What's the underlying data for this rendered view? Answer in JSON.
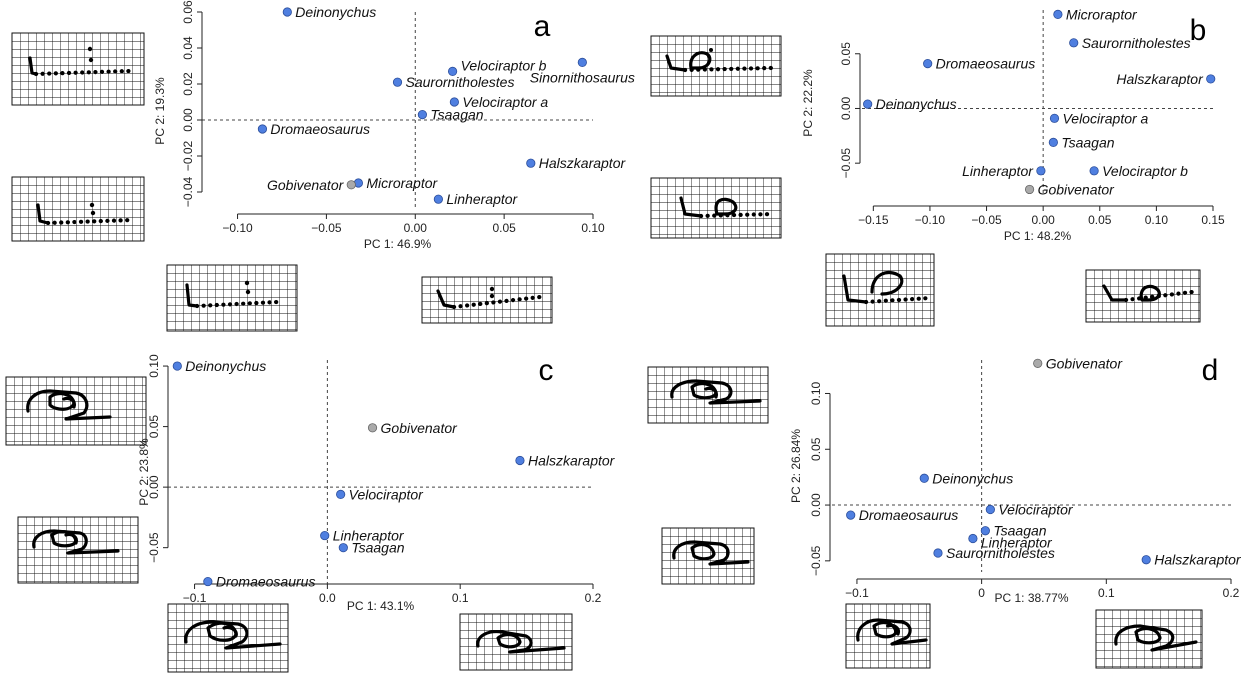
{
  "colors": {
    "point": "#4f7fe0",
    "point_gray": "#aaaaaa",
    "point_stroke": "#2c4e9a",
    "gray_stroke": "#666666"
  },
  "chart_data": [
    {
      "id": "a",
      "type": "scatter",
      "panel_label": "a",
      "xlabel": "PC 1: 46.9%",
      "ylabel": "PC 2: 19.3%",
      "xlim": [
        -0.12,
        0.1
      ],
      "ylim": [
        -0.05,
        0.06
      ],
      "xticks": [
        "−0.10",
        "−0.05",
        "0.00",
        "0.05",
        "0.10"
      ],
      "xtick_values": [
        -0.1,
        -0.05,
        0.0,
        0.05,
        0.1
      ],
      "yticks": [
        "−0.04",
        "−0.02",
        "0.00",
        "0.02",
        "0.04",
        "0.06"
      ],
      "ytick_values": [
        -0.04,
        -0.02,
        0.0,
        0.02,
        0.04,
        0.06
      ],
      "points": [
        {
          "name": "Deinonychus",
          "x": -0.072,
          "y": 0.06,
          "color": "blue",
          "pos": "right"
        },
        {
          "name": "Velociraptor b",
          "x": 0.021,
          "y": 0.027,
          "color": "blue",
          "pos": "right-up"
        },
        {
          "name": "Sinornithosaurus",
          "x": 0.094,
          "y": 0.032,
          "color": "blue",
          "pos": "below-center"
        },
        {
          "name": "Saurornitholestes",
          "x": -0.01,
          "y": 0.021,
          "color": "blue",
          "pos": "right"
        },
        {
          "name": "Velociraptor a",
          "x": 0.022,
          "y": 0.01,
          "color": "blue",
          "pos": "right"
        },
        {
          "name": "Tsaagan",
          "x": 0.004,
          "y": 0.003,
          "color": "blue",
          "pos": "right"
        },
        {
          "name": "Dromaeosaurus",
          "x": -0.086,
          "y": -0.005,
          "color": "blue",
          "pos": "right"
        },
        {
          "name": "Halszkaraptor",
          "x": 0.065,
          "y": -0.024,
          "color": "blue",
          "pos": "right"
        },
        {
          "name": "Microraptor",
          "x": -0.032,
          "y": -0.035,
          "color": "blue",
          "pos": "right"
        },
        {
          "name": "Gobivenator",
          "x": -0.036,
          "y": -0.036,
          "color": "gray",
          "pos": "left"
        },
        {
          "name": "Linheraptor",
          "x": 0.013,
          "y": -0.044,
          "color": "blue",
          "pos": "right"
        }
      ]
    },
    {
      "id": "b",
      "type": "scatter",
      "panel_label": "b",
      "xlabel": "PC 1: 48.2%",
      "ylabel": "PC 2: 22.2%",
      "xlim": [
        -0.16,
        0.15
      ],
      "ylim": [
        -0.08,
        0.09
      ],
      "xticks": [
        "−0.15",
        "−0.10",
        "−0.05",
        "0.00",
        "0.05",
        "0.10",
        "0.15"
      ],
      "xtick_values": [
        -0.15,
        -0.1,
        -0.05,
        0.0,
        0.05,
        0.1,
        0.15
      ],
      "yticks": [
        "−0.05",
        "0.00",
        "0.05"
      ],
      "ytick_values": [
        -0.05,
        0.0,
        0.05
      ],
      "points": [
        {
          "name": "Microraptor",
          "x": 0.013,
          "y": 0.086,
          "color": "blue",
          "pos": "right"
        },
        {
          "name": "Saurornitholestes",
          "x": 0.027,
          "y": 0.06,
          "color": "blue",
          "pos": "right"
        },
        {
          "name": "Dromaeosaurus",
          "x": -0.102,
          "y": 0.041,
          "color": "blue",
          "pos": "right"
        },
        {
          "name": "Halszkaraptor",
          "x": 0.148,
          "y": 0.027,
          "color": "blue",
          "pos": "left"
        },
        {
          "name": "Deinonychus",
          "x": -0.155,
          "y": 0.004,
          "color": "blue",
          "pos": "right"
        },
        {
          "name": "Velociraptor a",
          "x": 0.01,
          "y": -0.009,
          "color": "blue",
          "pos": "right"
        },
        {
          "name": "Tsaagan",
          "x": 0.009,
          "y": -0.031,
          "color": "blue",
          "pos": "right"
        },
        {
          "name": "Linheraptor",
          "x": -0.002,
          "y": -0.057,
          "color": "blue",
          "pos": "left"
        },
        {
          "name": "Velociraptor b",
          "x": 0.045,
          "y": -0.057,
          "color": "blue",
          "pos": "right"
        },
        {
          "name": "Gobivenator",
          "x": -0.012,
          "y": -0.074,
          "color": "gray",
          "pos": "right"
        }
      ]
    },
    {
      "id": "c",
      "type": "scatter",
      "panel_label": "c",
      "xlabel": "PC 1: 43.1%",
      "ylabel": "PC 2: 23.8%",
      "xlim": [
        -0.12,
        0.2
      ],
      "ylim": [
        -0.08,
        0.105
      ],
      "xticks": [
        "−0.1",
        "0.0",
        "0.1",
        "0.2"
      ],
      "xtick_values": [
        -0.1,
        0.0,
        0.1,
        0.2
      ],
      "yticks": [
        "−0.05",
        "0.00",
        "0.05",
        "0.10"
      ],
      "ytick_values": [
        -0.05,
        0.0,
        0.05,
        0.1
      ],
      "points": [
        {
          "name": "Deinonychus",
          "x": -0.113,
          "y": 0.1,
          "color": "blue",
          "pos": "right"
        },
        {
          "name": "Gobivenator",
          "x": 0.034,
          "y": 0.049,
          "color": "gray",
          "pos": "right"
        },
        {
          "name": "Halszkaraptor",
          "x": 0.145,
          "y": 0.022,
          "color": "blue",
          "pos": "right"
        },
        {
          "name": "Velociraptor",
          "x": 0.01,
          "y": -0.006,
          "color": "blue",
          "pos": "right"
        },
        {
          "name": "Linheraptor",
          "x": -0.002,
          "y": -0.04,
          "color": "blue",
          "pos": "right"
        },
        {
          "name": "Tsaagan",
          "x": 0.012,
          "y": -0.05,
          "color": "blue",
          "pos": "right"
        },
        {
          "name": "Dromaeosaurus",
          "x": -0.09,
          "y": -0.078,
          "color": "blue",
          "pos": "right"
        }
      ]
    },
    {
      "id": "d",
      "type": "scatter",
      "panel_label": "d",
      "xlabel": "PC 1: 38.77%",
      "ylabel": "PC 2: 26.84%",
      "xlim": [
        -0.12,
        0.2
      ],
      "ylim": [
        -0.06,
        0.13
      ],
      "xticks": [
        "−0.1",
        "0",
        "0.1",
        "0.2"
      ],
      "xtick_values": [
        -0.1,
        0.0,
        0.1,
        0.2
      ],
      "yticks": [
        "−0.05",
        "0.00",
        "0.05",
        "0.10"
      ],
      "ytick_values": [
        -0.05,
        0.0,
        0.05,
        0.1
      ],
      "points": [
        {
          "name": "Gobivenator",
          "x": 0.045,
          "y": 0.127,
          "color": "gray",
          "pos": "right"
        },
        {
          "name": "Deinonychus",
          "x": -0.046,
          "y": 0.024,
          "color": "blue",
          "pos": "right"
        },
        {
          "name": "Velociraptor",
          "x": 0.007,
          "y": -0.004,
          "color": "blue",
          "pos": "right"
        },
        {
          "name": "Dromaeosaurus",
          "x": -0.105,
          "y": -0.009,
          "color": "blue",
          "pos": "right"
        },
        {
          "name": "Tsaagan",
          "x": 0.003,
          "y": -0.023,
          "color": "blue",
          "pos": "right"
        },
        {
          "name": "Linheraptor",
          "x": -0.007,
          "y": -0.03,
          "color": "blue",
          "pos": "right-down"
        },
        {
          "name": "Saurornitholestes",
          "x": -0.035,
          "y": -0.043,
          "color": "blue",
          "pos": "right"
        },
        {
          "name": "Halszkaraptor",
          "x": 0.132,
          "y": -0.049,
          "color": "blue",
          "pos": "right"
        }
      ]
    }
  ]
}
